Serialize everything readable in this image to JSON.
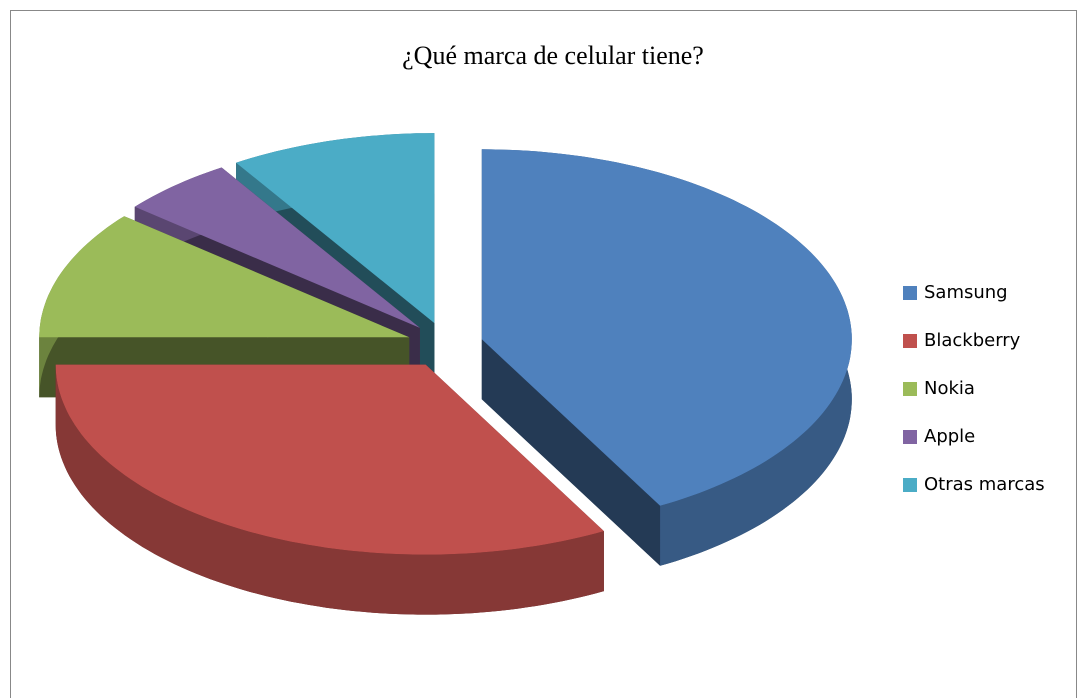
{
  "chart_data": {
    "type": "pie",
    "title": "¿Qué marca de celular tiene?",
    "categories": [
      "Samsung",
      "Blackberry",
      "Nokia",
      "Apple",
      "Otras marcas"
    ],
    "values": [
      42,
      33,
      11,
      5,
      9
    ],
    "colors": [
      "#4f81bd",
      "#c0504d",
      "#9bbb59",
      "#8064a2",
      "#4bacc6"
    ],
    "legend": "right"
  }
}
